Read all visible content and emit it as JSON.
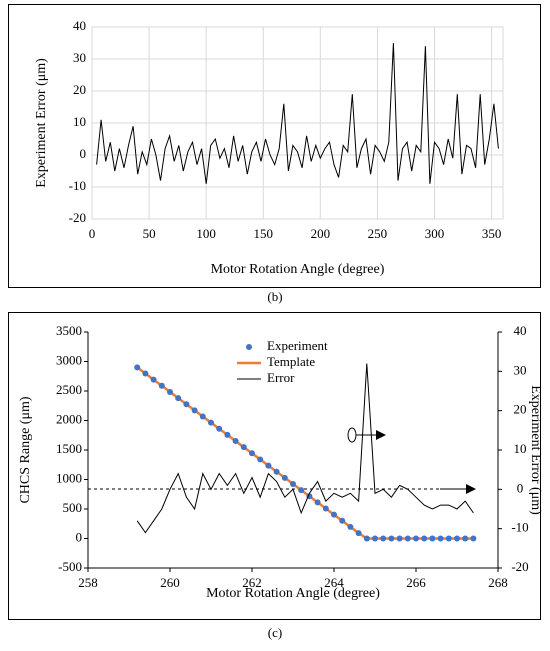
{
  "chart_data": [
    {
      "type": "line",
      "caption": "(b)",
      "xlabel": "Motor Rotation Angle (degree)",
      "ylabel": "Experiment  Error (μm)",
      "xlim": [
        0,
        360
      ],
      "xticks": [
        0,
        50,
        100,
        150,
        200,
        250,
        300,
        350
      ],
      "ylim": [
        -20,
        40
      ],
      "yticks": [
        -20,
        -10,
        0,
        10,
        20,
        30,
        40
      ],
      "grid": true,
      "x": [
        4,
        8,
        12,
        16,
        20,
        24,
        28,
        32,
        36,
        40,
        44,
        48,
        52,
        56,
        60,
        64,
        68,
        72,
        76,
        80,
        84,
        88,
        92,
        96,
        100,
        104,
        108,
        112,
        116,
        120,
        124,
        128,
        132,
        136,
        140,
        144,
        148,
        152,
        156,
        160,
        164,
        168,
        172,
        176,
        180,
        184,
        188,
        192,
        196,
        200,
        204,
        208,
        212,
        216,
        220,
        224,
        228,
        232,
        236,
        240,
        244,
        248,
        252,
        256,
        260,
        264,
        268,
        272,
        276,
        280,
        284,
        288,
        292,
        296,
        300,
        304,
        308,
        312,
        316,
        320,
        324,
        328,
        332,
        336,
        340,
        344,
        348,
        352,
        356
      ],
      "series": [
        {
          "name": "Error",
          "color": "#000000",
          "values": [
            -3,
            11,
            -2,
            4,
            -5,
            2,
            -4,
            3,
            9,
            -6,
            1,
            -3,
            5,
            0,
            -8,
            2,
            6,
            -2,
            3,
            -5,
            1,
            4,
            -3,
            2,
            -9,
            3,
            5,
            -1,
            2,
            -4,
            6,
            -2,
            3,
            -6,
            1,
            4,
            -2,
            5,
            0,
            -3,
            2,
            16,
            -5,
            3,
            1,
            -4,
            6,
            -2,
            3,
            -1,
            2,
            4,
            -3,
            -7,
            3,
            1,
            19,
            -4,
            2,
            5,
            -6,
            3,
            1,
            -2,
            4,
            35,
            -8,
            2,
            4,
            -5,
            3,
            1,
            34,
            -9,
            4,
            2,
            -3,
            5,
            -1,
            19,
            -6,
            3,
            2,
            -4,
            19,
            -3,
            5,
            16,
            2
          ]
        }
      ]
    },
    {
      "type": "line",
      "caption": "(c)",
      "legend": "upper center",
      "xlabel": "Motor Rotation Angle (degree)",
      "ylabel": "CHCS Range (μm)",
      "y2label": "Experiment  Error (μm)",
      "xlim": [
        258,
        268
      ],
      "xticks": [
        258,
        260,
        262,
        264,
        266,
        268
      ],
      "ylim": [
        -500,
        3500
      ],
      "yticks": [
        -500,
        0,
        500,
        1000,
        1500,
        2000,
        2500,
        3000,
        3500
      ],
      "y2lim": [
        -20,
        40
      ],
      "y2ticks": [
        -20,
        -10,
        0,
        10,
        20,
        30,
        40
      ],
      "grid": false,
      "x": [
        259.2,
        259.4,
        259.6,
        259.8,
        260.0,
        260.2,
        260.4,
        260.6,
        260.8,
        261.0,
        261.2,
        261.4,
        261.6,
        261.8,
        262.0,
        262.2,
        262.4,
        262.6,
        262.8,
        263.0,
        263.2,
        263.4,
        263.6,
        263.8,
        264.0,
        264.2,
        264.4,
        264.6,
        264.8,
        265.0,
        265.2,
        265.4,
        265.6,
        265.8,
        266.0,
        266.2,
        266.4,
        266.6,
        266.8,
        267.0,
        267.2,
        267.4
      ],
      "series": [
        {
          "name": "Experiment",
          "color": "#4472c4",
          "mode": "markers",
          "values": [
            2900,
            2796,
            2692,
            2588,
            2484,
            2380,
            2276,
            2172,
            2068,
            1964,
            1860,
            1756,
            1652,
            1548,
            1444,
            1340,
            1236,
            1132,
            1028,
            924,
            820,
            716,
            612,
            508,
            404,
            300,
            196,
            92,
            0,
            0,
            0,
            0,
            0,
            0,
            0,
            0,
            0,
            0,
            0,
            0,
            0,
            0
          ]
        },
        {
          "name": "Template",
          "color": "#ed7d31",
          "mode": "line",
          "values": [
            2900,
            2796,
            2692,
            2588,
            2484,
            2380,
            2276,
            2172,
            2068,
            1964,
            1860,
            1756,
            1652,
            1548,
            1444,
            1340,
            1236,
            1132,
            1028,
            924,
            820,
            716,
            612,
            508,
            404,
            300,
            196,
            92,
            0,
            0,
            0,
            0,
            0,
            0,
            0,
            0,
            0,
            0,
            0,
            0,
            0,
            0
          ]
        },
        {
          "name": "Error",
          "color": "#000000",
          "mode": "line",
          "axis": "y2",
          "values": [
            -8,
            -11,
            -8,
            -5,
            0,
            4,
            -2,
            -5,
            4,
            0,
            4,
            1,
            4,
            -1,
            3,
            -2,
            4,
            2,
            -2,
            0,
            -6,
            -1,
            2,
            -3,
            -1,
            -2,
            -1,
            -3,
            32,
            -1,
            0,
            -2,
            1,
            0,
            -2,
            -4,
            -5,
            -4,
            -4,
            -5,
            -3,
            -6
          ]
        }
      ]
    }
  ]
}
